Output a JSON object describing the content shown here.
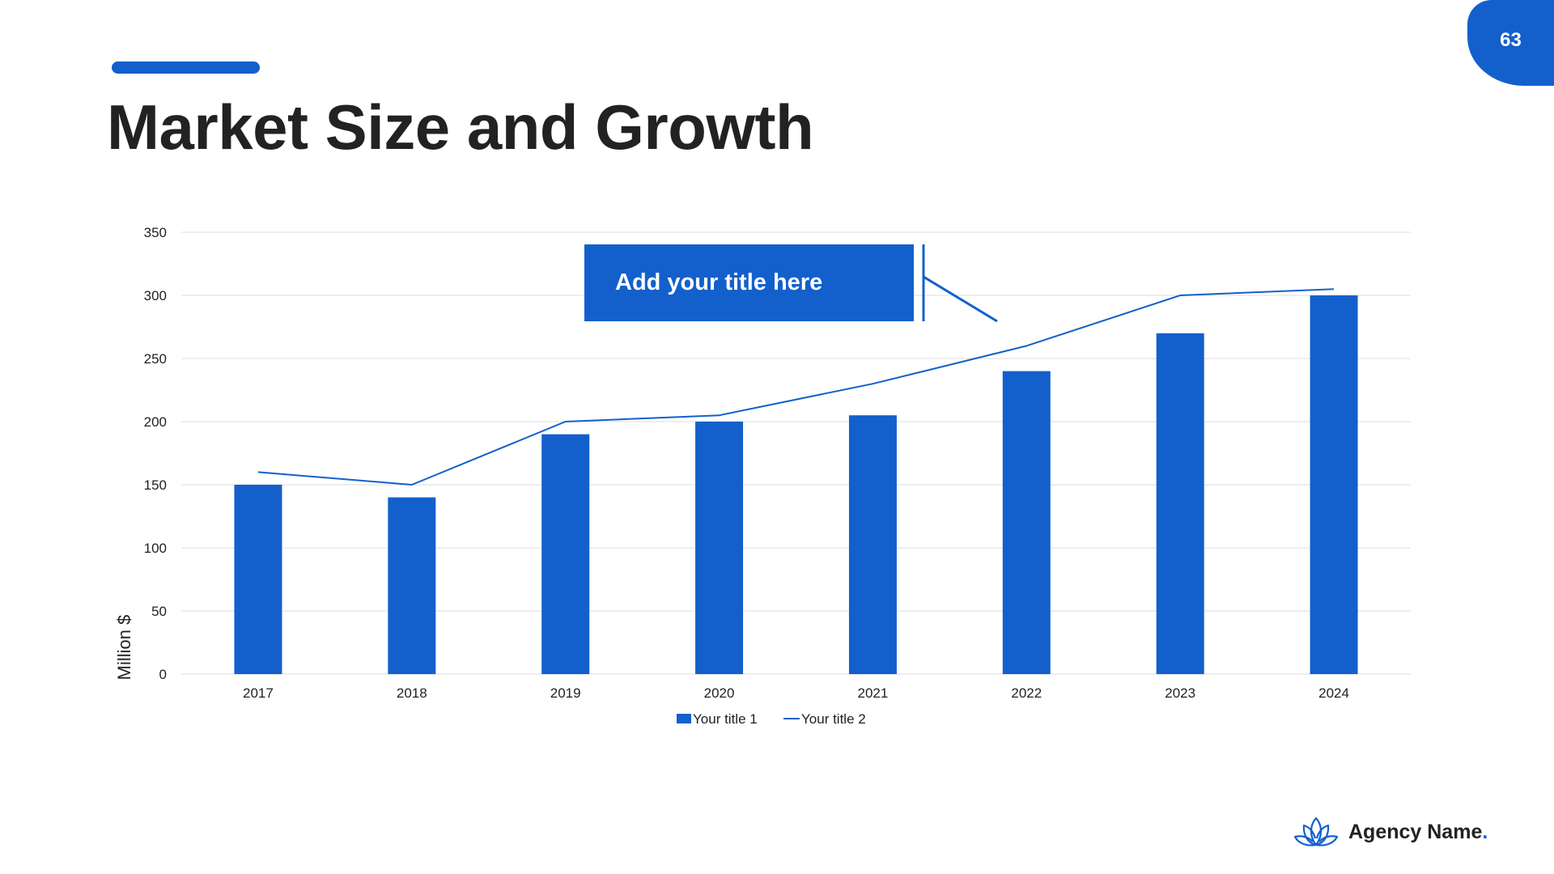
{
  "slide": {
    "title": "Market Size and Growth",
    "page_number": "63"
  },
  "callout": {
    "text": "Add your title here"
  },
  "footer": {
    "brand": "Agency Name",
    "brand_dot": "."
  },
  "colors": {
    "accent": "#1360cc",
    "text": "#222222",
    "grid": "#e3e3e3"
  },
  "chart_data": {
    "type": "bar",
    "categories": [
      "2017",
      "2018",
      "2019",
      "2020",
      "2021",
      "2022",
      "2023",
      "2024"
    ],
    "series": [
      {
        "name": "Your title 1",
        "type": "bar",
        "values": [
          150,
          140,
          190,
          200,
          205,
          240,
          270,
          300
        ]
      },
      {
        "name": "Your title 2",
        "type": "line",
        "values": [
          160,
          150,
          200,
          205,
          230,
          260,
          300,
          305
        ]
      }
    ],
    "ylabel": "Million $",
    "xlabel": "",
    "ylim": [
      0,
      350
    ],
    "yticks": [
      "0",
      "50",
      "100",
      "150",
      "200",
      "250",
      "300",
      "350"
    ],
    "grid": true,
    "legend": "bottom-center"
  }
}
